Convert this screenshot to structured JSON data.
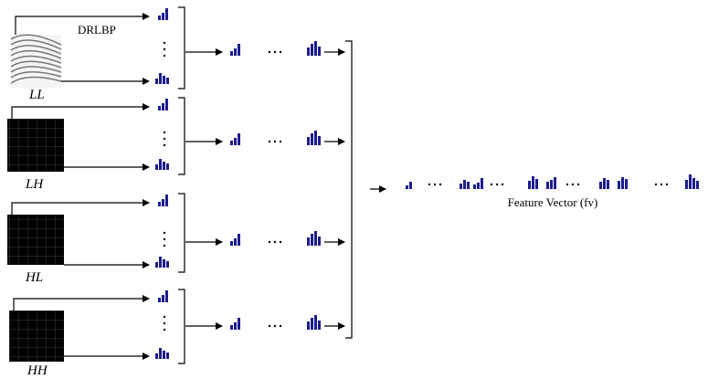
{
  "method_label": "DRLBP",
  "subbands": [
    "LL",
    "LH",
    "HL",
    "HH"
  ],
  "output_label": "Feature Vector (fv)"
}
